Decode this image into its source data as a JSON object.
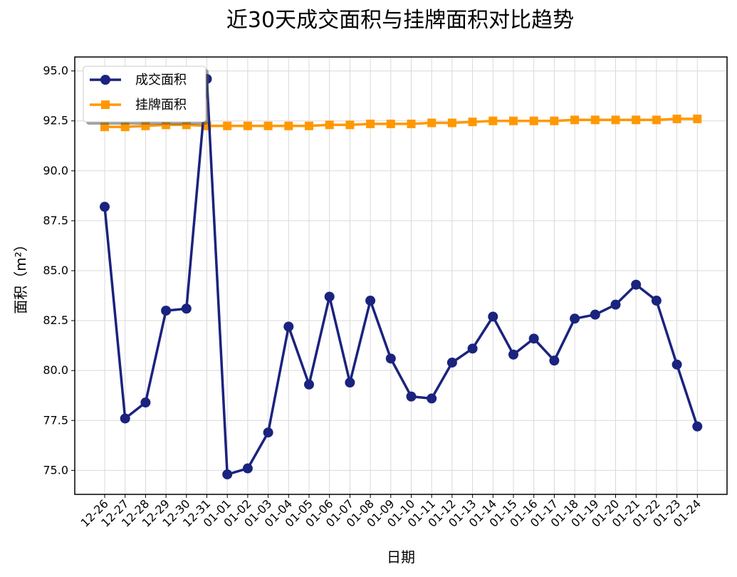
{
  "chart_data": {
    "type": "line",
    "title": "近30天成交面积与挂牌面积对比趋势",
    "xlabel": "日期",
    "ylabel": "面积（m²）",
    "categories": [
      "12-26",
      "12-27",
      "12-28",
      "12-29",
      "12-30",
      "12-31",
      "01-01",
      "01-02",
      "01-03",
      "01-04",
      "01-05",
      "01-06",
      "01-07",
      "01-08",
      "01-09",
      "01-10",
      "01-11",
      "01-12",
      "01-13",
      "01-14",
      "01-15",
      "01-16",
      "01-17",
      "01-18",
      "01-19",
      "01-20",
      "01-21",
      "01-22",
      "01-23",
      "01-24"
    ],
    "yticks": [
      75.0,
      77.5,
      80.0,
      82.5,
      85.0,
      87.5,
      90.0,
      92.5,
      95.0
    ],
    "ylim": [
      73.8,
      95.7
    ],
    "grid": true,
    "legend": "top-left",
    "series": [
      {
        "name": "成交面积",
        "color": "#1a237e",
        "marker": "circle",
        "values": [
          88.2,
          77.6,
          78.4,
          83.0,
          83.1,
          94.6,
          74.8,
          75.1,
          76.9,
          82.2,
          79.3,
          83.7,
          79.4,
          83.5,
          80.6,
          78.7,
          78.6,
          80.4,
          81.1,
          82.7,
          80.8,
          81.6,
          80.5,
          82.6,
          82.8,
          83.3,
          84.3,
          83.5,
          80.3,
          77.2
        ]
      },
      {
        "name": "挂牌面积",
        "color": "#ff9800",
        "marker": "square",
        "values": [
          92.2,
          92.2,
          92.25,
          92.3,
          92.3,
          92.25,
          92.25,
          92.25,
          92.25,
          92.25,
          92.25,
          92.3,
          92.3,
          92.35,
          92.35,
          92.35,
          92.4,
          92.4,
          92.45,
          92.5,
          92.5,
          92.5,
          92.5,
          92.55,
          92.55,
          92.55,
          92.55,
          92.55,
          92.6,
          92.6
        ]
      }
    ]
  }
}
